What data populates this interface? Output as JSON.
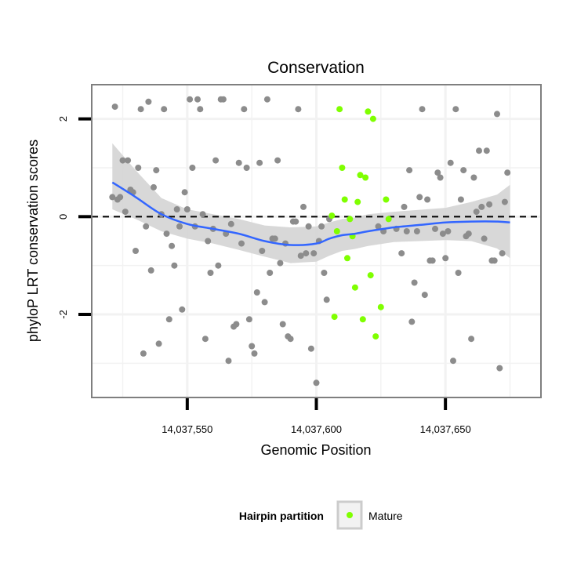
{
  "chart_data": {
    "type": "scatter",
    "title": "Conservation",
    "xlabel": "Genomic Position",
    "ylabel": "phyloP LRT conservation scores",
    "xlim": [
      14037513,
      14037687
    ],
    "ylim": [
      -3.7,
      2.7
    ],
    "x_ticks": [
      14037550,
      14037600,
      14037650
    ],
    "x_tick_labels": [
      "14,037,550",
      "14,037,600",
      "14,037,650"
    ],
    "y_ticks": [
      -2,
      0,
      2
    ],
    "y_tick_labels": [
      "-2",
      "0",
      "2"
    ],
    "grid": true,
    "reference_line": {
      "y": 0,
      "style": "dashed"
    },
    "legend": {
      "title": "Hairpin partition",
      "position": "bottom",
      "entries": [
        {
          "label": "Mature",
          "color": "#7fff00"
        }
      ]
    },
    "colors": {
      "other": "#8c8c8c",
      "mature": "#7fff00",
      "smooth": "#3366ff",
      "ribbon": "#d4d4d4",
      "panel_border": "#7f7f7f",
      "grid": "#f2f2f2"
    },
    "series": [
      {
        "name": "",
        "color": "#8c8c8c",
        "points": [
          [
            14037521,
            0.4
          ],
          [
            14037522,
            2.25
          ],
          [
            14037523,
            0.35
          ],
          [
            14037524,
            0.4
          ],
          [
            14037525,
            1.15
          ],
          [
            14037526,
            0.1
          ],
          [
            14037527,
            1.15
          ],
          [
            14037528,
            0.55
          ],
          [
            14037529,
            0.5
          ],
          [
            14037530,
            -0.7
          ],
          [
            14037531,
            1
          ],
          [
            14037532,
            2.2
          ],
          [
            14037533,
            -2.8
          ],
          [
            14037534,
            -0.2
          ],
          [
            14037535,
            2.35
          ],
          [
            14037536,
            -1.1
          ],
          [
            14037537,
            0.6
          ],
          [
            14037538,
            0.95
          ],
          [
            14037539,
            -2.6
          ],
          [
            14037540,
            0.05
          ],
          [
            14037541,
            2.2
          ],
          [
            14037542,
            -0.35
          ],
          [
            14037543,
            -2.1
          ],
          [
            14037544,
            -0.6
          ],
          [
            14037545,
            -1
          ],
          [
            14037546,
            0.15
          ],
          [
            14037547,
            -0.2
          ],
          [
            14037548,
            -1.9
          ],
          [
            14037549,
            0.5
          ],
          [
            14037550,
            0.15
          ],
          [
            14037551,
            2.4
          ],
          [
            14037552,
            1
          ],
          [
            14037553,
            -0.2
          ],
          [
            14037554,
            2.4
          ],
          [
            14037555,
            2.2
          ],
          [
            14037556,
            0.05
          ],
          [
            14037557,
            -2.5
          ],
          [
            14037558,
            -0.5
          ],
          [
            14037559,
            -1.15
          ],
          [
            14037560,
            -0.25
          ],
          [
            14037561,
            1.15
          ],
          [
            14037562,
            -1
          ],
          [
            14037563,
            2.4
          ],
          [
            14037564,
            2.4
          ],
          [
            14037565,
            -0.35
          ],
          [
            14037566,
            -2.95
          ],
          [
            14037567,
            -0.15
          ],
          [
            14037568,
            -2.25
          ],
          [
            14037569,
            -2.2
          ],
          [
            14037570,
            1.1
          ],
          [
            14037571,
            -0.55
          ],
          [
            14037572,
            2.2
          ],
          [
            14037573,
            1
          ],
          [
            14037574,
            -2.1
          ],
          [
            14037575,
            -2.65
          ],
          [
            14037576,
            -2.8
          ],
          [
            14037577,
            -1.55
          ],
          [
            14037578,
            1.1
          ],
          [
            14037579,
            -0.7
          ],
          [
            14037580,
            -1.75
          ],
          [
            14037581,
            2.4
          ],
          [
            14037582,
            -1.15
          ],
          [
            14037583,
            -0.45
          ],
          [
            14037584,
            -0.45
          ],
          [
            14037585,
            1.15
          ],
          [
            14037586,
            -0.95
          ],
          [
            14037587,
            -2.2
          ],
          [
            14037588,
            -0.55
          ],
          [
            14037589,
            -2.45
          ],
          [
            14037590,
            -2.5
          ],
          [
            14037591,
            -0.1
          ],
          [
            14037592,
            -0.1
          ],
          [
            14037593,
            2.2
          ],
          [
            14037594,
            -0.8
          ],
          [
            14037595,
            0.2
          ],
          [
            14037596,
            -0.75
          ],
          [
            14037597,
            -0.2
          ],
          [
            14037598,
            -2.7
          ],
          [
            14037599,
            -0.75
          ],
          [
            14037600,
            -3.4
          ],
          [
            14037601,
            -0.5
          ],
          [
            14037602,
            -0.2
          ],
          [
            14037603,
            -1.15
          ],
          [
            14037604,
            -1.7
          ],
          [
            14037605,
            -0.05
          ],
          [
            14037624,
            -0.2
          ],
          [
            14037626,
            -0.3
          ],
          [
            14037631,
            -0.25
          ],
          [
            14037633,
            -0.75
          ],
          [
            14037634,
            0.2
          ],
          [
            14037635,
            -0.3
          ],
          [
            14037636,
            0.95
          ],
          [
            14037637,
            -2.15
          ],
          [
            14037638,
            -1.35
          ],
          [
            14037639,
            -0.3
          ],
          [
            14037640,
            0.4
          ],
          [
            14037641,
            2.2
          ],
          [
            14037642,
            -1.6
          ],
          [
            14037643,
            0.35
          ],
          [
            14037644,
            -0.9
          ],
          [
            14037645,
            -0.9
          ],
          [
            14037646,
            -0.25
          ],
          [
            14037647,
            0.9
          ],
          [
            14037648,
            0.8
          ],
          [
            14037649,
            -0.35
          ],
          [
            14037650,
            -0.85
          ],
          [
            14037651,
            -0.3
          ],
          [
            14037652,
            1.1
          ],
          [
            14037653,
            -2.95
          ],
          [
            14037654,
            2.2
          ],
          [
            14037655,
            -1.15
          ],
          [
            14037656,
            0.35
          ],
          [
            14037657,
            0.95
          ],
          [
            14037658,
            -0.4
          ],
          [
            14037659,
            -0.35
          ],
          [
            14037660,
            -2.5
          ],
          [
            14037661,
            0.8
          ],
          [
            14037662,
            0.1
          ],
          [
            14037663,
            1.35
          ],
          [
            14037664,
            0.2
          ],
          [
            14037665,
            -0.45
          ],
          [
            14037666,
            1.35
          ],
          [
            14037667,
            0.25
          ],
          [
            14037668,
            -0.9
          ],
          [
            14037669,
            -0.9
          ],
          [
            14037670,
            2.1
          ],
          [
            14037671,
            -3.1
          ],
          [
            14037672,
            -0.75
          ],
          [
            14037673,
            0.3
          ],
          [
            14037674,
            0.9
          ]
        ]
      },
      {
        "name": "Mature",
        "color": "#7fff00",
        "points": [
          [
            14037606,
            0.02
          ],
          [
            14037607,
            -2.05
          ],
          [
            14037608,
            -0.3
          ],
          [
            14037609,
            2.2
          ],
          [
            14037610,
            1
          ],
          [
            14037611,
            0.35
          ],
          [
            14037612,
            -0.85
          ],
          [
            14037613,
            -0.05
          ],
          [
            14037614,
            -0.4
          ],
          [
            14037615,
            -1.45
          ],
          [
            14037616,
            0.3
          ],
          [
            14037617,
            0.85
          ],
          [
            14037618,
            -2.1
          ],
          [
            14037619,
            0.8
          ],
          [
            14037620,
            2.15
          ],
          [
            14037621,
            -1.2
          ],
          [
            14037622,
            2
          ],
          [
            14037623,
            -2.45
          ],
          [
            14037625,
            -1.85
          ],
          [
            14037627,
            0.35
          ],
          [
            14037628,
            -0.05
          ]
        ]
      }
    ],
    "smooth": {
      "x": [
        14037521,
        14037530,
        14037540,
        14037550,
        14037560,
        14037570,
        14037580,
        14037590,
        14037600,
        14037605,
        14037610,
        14037615,
        14037620,
        14037630,
        14037640,
        14037650,
        14037660,
        14037670,
        14037675
      ],
      "y": [
        0.7,
        0.4,
        0.05,
        -0.15,
        -0.25,
        -0.35,
        -0.5,
        -0.58,
        -0.55,
        -0.45,
        -0.38,
        -0.35,
        -0.3,
        -0.22,
        -0.17,
        -0.12,
        -0.1,
        -0.1,
        -0.12
      ],
      "lower": [
        0.15,
        -0.05,
        -0.3,
        -0.45,
        -0.55,
        -0.68,
        -0.82,
        -0.95,
        -0.92,
        -0.8,
        -0.7,
        -0.66,
        -0.6,
        -0.52,
        -0.5,
        -0.48,
        -0.5,
        -0.65,
        -0.85
      ],
      "upper": [
        1.5,
        0.95,
        0.38,
        0.15,
        0.05,
        -0.05,
        -0.18,
        -0.22,
        -0.2,
        -0.12,
        -0.05,
        -0.02,
        0.05,
        0.1,
        0.14,
        0.18,
        0.3,
        0.45,
        0.65
      ]
    }
  }
}
